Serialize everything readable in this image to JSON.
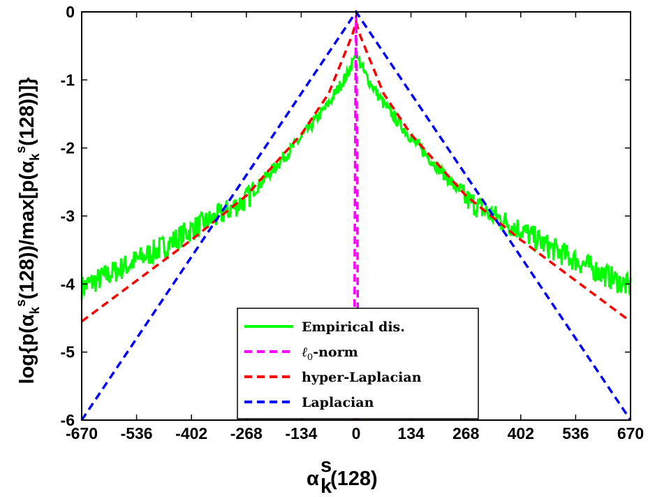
{
  "chart_data": {
    "type": "line",
    "xlabel": "α",
    "xlabel_sub": "k",
    "xlabel_sup": "s",
    "xlabel_suffix": "(128)",
    "ylabel": "log{p(α_k^s(128))/max[p(α_k^s(128))]}",
    "ylabel_parts": [
      "log{p(α",
      "k",
      "s",
      "(128))/max[p(α",
      "k",
      "s",
      "(128))]}"
    ],
    "xlim": [
      -670,
      670
    ],
    "ylim": [
      -6,
      0
    ],
    "xticks": [
      -670,
      -536,
      -402,
      -268,
      -134,
      0,
      134,
      268,
      402,
      536,
      670
    ],
    "xtick_labels": [
      "-670",
      "-536",
      "-402",
      "-268",
      "-134",
      "0",
      "134",
      "268",
      "402",
      "536",
      "670"
    ],
    "yticks": [
      0,
      -1,
      -2,
      -3,
      -4,
      -5,
      -6
    ],
    "ytick_labels": [
      "0",
      "-1",
      "-2",
      "-3",
      "-4",
      "-5",
      "-6"
    ],
    "grid": false,
    "legend_position": "bottom-center",
    "series": [
      {
        "name": "Empirical dis.",
        "color": "#00ff00",
        "style": "solid",
        "noisy": true,
        "x": [
          -670,
          -600,
          -536,
          -469,
          -402,
          -335,
          -268,
          -201,
          -134,
          -67,
          -20,
          0,
          20,
          67,
          134,
          201,
          268,
          335,
          402,
          469,
          536,
          603,
          670
        ],
        "y": [
          -4.05,
          -3.85,
          -3.65,
          -3.45,
          -3.2,
          -3.0,
          -2.75,
          -2.3,
          -1.85,
          -1.35,
          -0.9,
          -0.6,
          -0.9,
          -1.35,
          -1.85,
          -2.3,
          -2.75,
          -3.0,
          -3.2,
          -3.45,
          -3.65,
          -3.85,
          -4.05
        ]
      },
      {
        "name": "ℓ0-norm",
        "name_main": "ℓ",
        "name_sub": "0",
        "name_rest": "-norm",
        "color": "#ff00ff",
        "style": "dashed",
        "x": [
          -5,
          -3,
          -1,
          0,
          1,
          3,
          5
        ],
        "y": [
          -6,
          -3.0,
          -0.6,
          -0.05,
          -0.6,
          -3.0,
          -6
        ]
      },
      {
        "name": "hyper-Laplacian",
        "color": "#ff0000",
        "style": "dashed",
        "x": [
          -670,
          -536,
          -402,
          -268,
          -134,
          -67,
          -10,
          0,
          10,
          67,
          134,
          268,
          402,
          536,
          670
        ],
        "y": [
          -4.55,
          -3.95,
          -3.35,
          -2.7,
          -1.8,
          -1.2,
          -0.35,
          -0.15,
          -0.35,
          -1.2,
          -1.8,
          -2.7,
          -3.35,
          -3.95,
          -4.55
        ]
      },
      {
        "name": "Laplacian",
        "color": "#0000ff",
        "style": "dashed",
        "x": [
          -670,
          0,
          670
        ],
        "y": [
          -6.15,
          0,
          -6.15
        ]
      }
    ]
  }
}
